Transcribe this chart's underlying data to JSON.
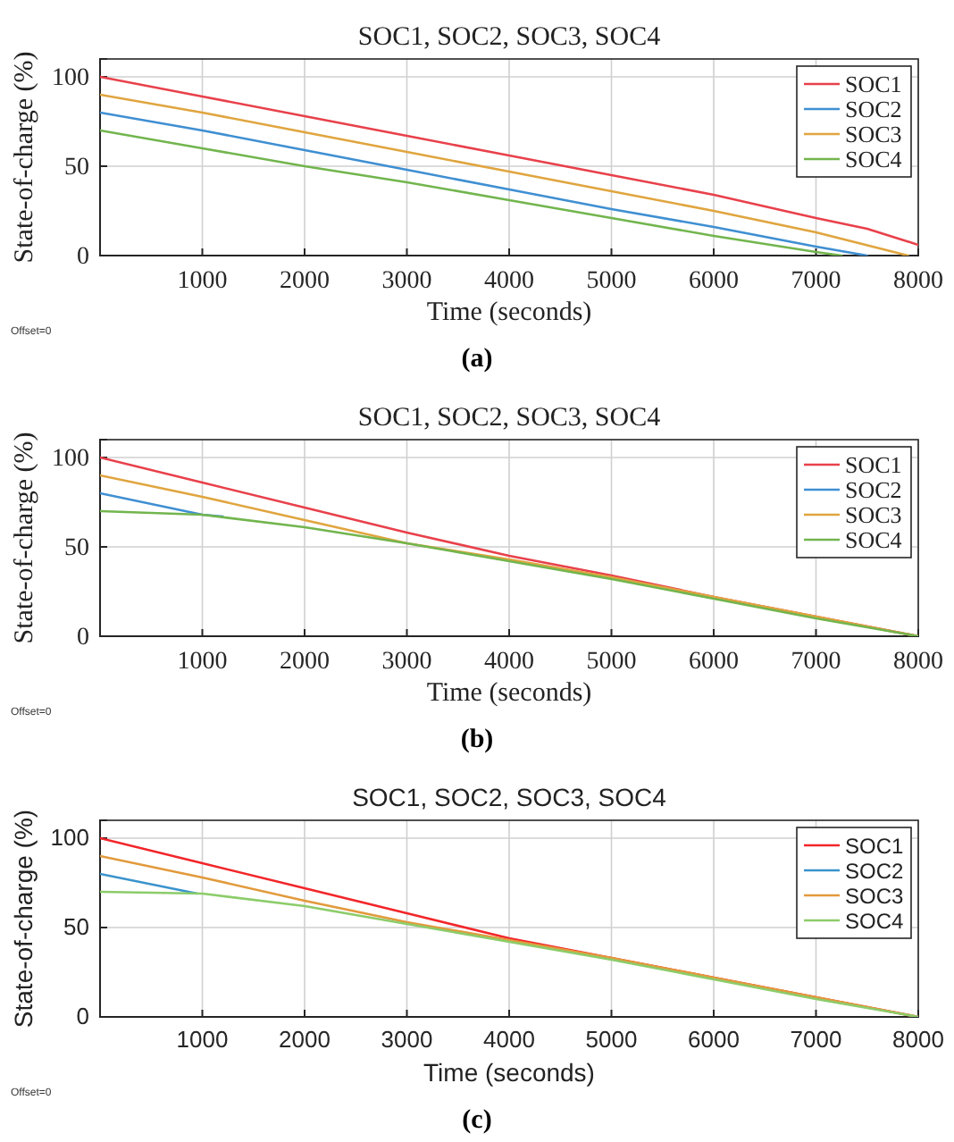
{
  "chart_data": [
    {
      "type": "line",
      "title": "SOC1, SOC2, SOC3, SOC4",
      "xlabel": "Time (seconds)",
      "ylabel": "State-of-charge (%)",
      "annotations": [
        "Offset=0",
        "(a)"
      ],
      "xlim": [
        0,
        8000
      ],
      "xticks": [
        1000,
        2000,
        3000,
        4000,
        5000,
        6000,
        7000,
        8000
      ],
      "ylim": [
        0,
        110
      ],
      "yticks": [
        0,
        50,
        100
      ],
      "grid": true,
      "legend": "top right",
      "series": [
        {
          "name": "SOC1",
          "color": "#e8414b",
          "x": [
            0,
            1000,
            2000,
            3000,
            4000,
            5000,
            6000,
            7000,
            7500,
            8000
          ],
          "values": [
            100,
            89,
            78,
            67,
            56,
            45,
            34,
            21,
            15,
            6
          ]
        },
        {
          "name": "SOC2",
          "color": "#3f8fd2",
          "x": [
            0,
            1000,
            2000,
            3000,
            4000,
            5000,
            6000,
            7000,
            7500
          ],
          "values": [
            80,
            70,
            59,
            48,
            37,
            26,
            16,
            5,
            0
          ]
        },
        {
          "name": "SOC3",
          "color": "#e0a53f",
          "x": [
            0,
            1000,
            2000,
            3000,
            4000,
            5000,
            6000,
            7000,
            7900
          ],
          "values": [
            90,
            80,
            69,
            58,
            47,
            36,
            25,
            13,
            0
          ]
        },
        {
          "name": "SOC4",
          "color": "#72b54e",
          "x": [
            0,
            1000,
            2000,
            3000,
            4000,
            5000,
            6000,
            7000,
            7250
          ],
          "values": [
            70,
            60,
            50,
            41,
            31,
            21,
            11,
            2,
            0
          ]
        }
      ]
    },
    {
      "type": "line",
      "title": "SOC1, SOC2, SOC3, SOC4",
      "xlabel": "Time (seconds)",
      "ylabel": "State-of-charge (%)",
      "annotations": [
        "Offset=0",
        "(b)"
      ],
      "xlim": [
        0,
        8000
      ],
      "xticks": [
        1000,
        2000,
        3000,
        4000,
        5000,
        6000,
        7000,
        8000
      ],
      "ylim": [
        0,
        110
      ],
      "yticks": [
        0,
        50,
        100
      ],
      "grid": true,
      "legend": "top right",
      "series": [
        {
          "name": "SOC1",
          "color": "#e8414b",
          "x": [
            0,
            1000,
            2000,
            3000,
            4000,
            5000,
            6000,
            7000,
            8000
          ],
          "values": [
            100,
            86,
            72,
            58,
            45,
            34,
            22,
            11,
            0
          ]
        },
        {
          "name": "SOC2",
          "color": "#3f8fd2",
          "x": [
            0,
            1000,
            1200
          ],
          "values": [
            80,
            68,
            67
          ]
        },
        {
          "name": "SOC3",
          "color": "#e0a53f",
          "x": [
            0,
            1000,
            2000,
            3000,
            4000,
            5000,
            6000,
            7000,
            8000
          ],
          "values": [
            90,
            78,
            65,
            52,
            43,
            33,
            22,
            11,
            0
          ]
        },
        {
          "name": "SOC4",
          "color": "#72b54e",
          "x": [
            0,
            1000,
            2000,
            3000,
            4000,
            5000,
            6000,
            7000,
            8000
          ],
          "values": [
            70,
            68,
            61,
            52,
            42,
            32,
            21,
            10,
            0
          ]
        }
      ]
    },
    {
      "type": "line",
      "title": "SOC1, SOC2, SOC3, SOC4",
      "xlabel": "Time (seconds)",
      "ylabel": "State-of-charge (%)",
      "annotations": [
        "Offset=0",
        "(c)"
      ],
      "xlim": [
        0,
        8000
      ],
      "xticks": [
        1000,
        2000,
        3000,
        4000,
        5000,
        6000,
        7000,
        8000
      ],
      "ylim": [
        0,
        110
      ],
      "yticks": [
        0,
        50,
        100
      ],
      "grid": true,
      "legend": "top right",
      "series": [
        {
          "name": "SOC1",
          "color": "#f2262a",
          "x": [
            0,
            1000,
            2000,
            3000,
            4000,
            5000,
            6000,
            7000,
            8000
          ],
          "values": [
            100,
            86,
            72,
            58,
            44,
            33,
            22,
            11,
            0
          ]
        },
        {
          "name": "SOC2",
          "color": "#3a93cc",
          "x": [
            0,
            950
          ],
          "values": [
            80,
            69
          ]
        },
        {
          "name": "SOC3",
          "color": "#e29a3c",
          "x": [
            0,
            1000,
            2000,
            3000,
            4000,
            5000,
            6000,
            7000,
            8000
          ],
          "values": [
            90,
            78,
            65,
            53,
            43,
            33,
            22,
            11,
            0
          ]
        },
        {
          "name": "SOC4",
          "color": "#8ccc6a",
          "x": [
            0,
            1000,
            2000,
            3000,
            4000,
            5000,
            6000,
            7000,
            8000
          ],
          "values": [
            70,
            69,
            62,
            52,
            42,
            32,
            21,
            10,
            0
          ]
        }
      ]
    }
  ]
}
